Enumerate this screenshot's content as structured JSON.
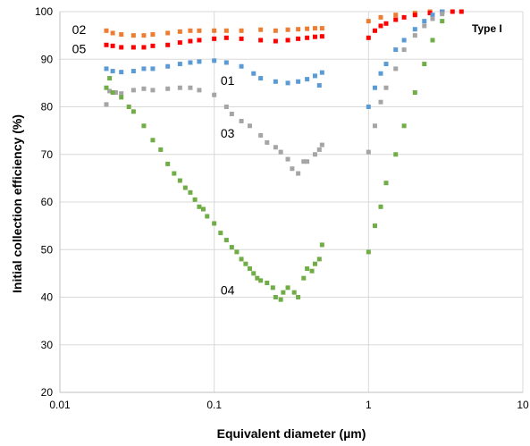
{
  "chart_data": {
    "type": "scatter",
    "title": "",
    "annotation": "Type I",
    "xlabel": "Equivalent diameter (µm)",
    "ylabel": "Initial collection efficiency (%)",
    "xscale": "log",
    "xlim": [
      0.01,
      10
    ],
    "ylim": [
      20,
      100
    ],
    "grid": true,
    "legend": "none",
    "x_ticks": [
      0.01,
      0.1,
      1,
      10
    ],
    "x_tick_labels": [
      "0.01",
      "0.1",
      "1",
      "10"
    ],
    "y_ticks": [
      20,
      30,
      40,
      50,
      60,
      70,
      80,
      90,
      100
    ],
    "y_tick_labels": [
      "20",
      "30",
      "40",
      "50",
      "60",
      "70",
      "80",
      "90",
      "100"
    ],
    "series": [
      {
        "name": "02",
        "color": "#ED7D31",
        "points": [
          [
            0.02,
            96
          ],
          [
            0.022,
            95.5
          ],
          [
            0.025,
            95.2
          ],
          [
            0.03,
            95
          ],
          [
            0.035,
            95
          ],
          [
            0.04,
            95.2
          ],
          [
            0.05,
            95.5
          ],
          [
            0.06,
            95.8
          ],
          [
            0.07,
            96
          ],
          [
            0.08,
            96
          ],
          [
            0.1,
            96
          ],
          [
            0.12,
            96
          ],
          [
            0.15,
            96
          ],
          [
            0.2,
            96.2
          ],
          [
            0.25,
            96
          ],
          [
            0.3,
            96.2
          ],
          [
            0.35,
            96.3
          ],
          [
            0.4,
            96.4
          ],
          [
            0.45,
            96.5
          ],
          [
            0.5,
            96.5
          ],
          [
            1.0,
            98
          ],
          [
            1.2,
            98.8
          ],
          [
            1.5,
            99.3
          ],
          [
            2.0,
            99.7
          ],
          [
            2.5,
            100
          ],
          [
            3.0,
            100
          ]
        ]
      },
      {
        "name": "05",
        "color": "#FF0000",
        "points": [
          [
            0.02,
            93
          ],
          [
            0.022,
            92.8
          ],
          [
            0.025,
            92.5
          ],
          [
            0.03,
            92.5
          ],
          [
            0.035,
            92.5
          ],
          [
            0.04,
            92.8
          ],
          [
            0.05,
            93
          ],
          [
            0.06,
            93.5
          ],
          [
            0.07,
            93.8
          ],
          [
            0.08,
            94
          ],
          [
            0.1,
            94.3
          ],
          [
            0.12,
            94.5
          ],
          [
            0.15,
            94.3
          ],
          [
            0.2,
            94
          ],
          [
            0.25,
            93.8
          ],
          [
            0.3,
            94
          ],
          [
            0.35,
            94.3
          ],
          [
            0.4,
            94.5
          ],
          [
            0.45,
            94.7
          ],
          [
            0.5,
            94.8
          ],
          [
            1.0,
            94.5
          ],
          [
            1.1,
            96
          ],
          [
            1.2,
            97
          ],
          [
            1.3,
            97.5
          ],
          [
            1.5,
            98.3
          ],
          [
            1.7,
            98.8
          ],
          [
            2.0,
            99.3
          ],
          [
            2.5,
            99.7
          ],
          [
            3.0,
            100
          ],
          [
            3.5,
            100
          ],
          [
            4.0,
            100
          ]
        ]
      },
      {
        "name": "01",
        "color": "#5B9BD5",
        "points": [
          [
            0.02,
            88
          ],
          [
            0.022,
            87.5
          ],
          [
            0.025,
            87.3
          ],
          [
            0.03,
            87.5
          ],
          [
            0.035,
            88
          ],
          [
            0.04,
            88
          ],
          [
            0.05,
            88.5
          ],
          [
            0.06,
            89
          ],
          [
            0.07,
            89.3
          ],
          [
            0.08,
            89.5
          ],
          [
            0.1,
            89.7
          ],
          [
            0.12,
            89.3
          ],
          [
            0.15,
            88.5
          ],
          [
            0.18,
            87
          ],
          [
            0.2,
            86
          ],
          [
            0.25,
            85.3
          ],
          [
            0.3,
            85
          ],
          [
            0.35,
            85.3
          ],
          [
            0.4,
            85.8
          ],
          [
            0.45,
            86.5
          ],
          [
            0.48,
            84.5
          ],
          [
            0.5,
            87.2
          ],
          [
            1.0,
            80
          ],
          [
            1.1,
            84
          ],
          [
            1.2,
            87
          ],
          [
            1.3,
            89
          ],
          [
            1.5,
            92
          ],
          [
            1.7,
            94
          ],
          [
            2.0,
            96.3
          ],
          [
            2.3,
            98
          ],
          [
            2.6,
            99.3
          ],
          [
            3.0,
            100
          ]
        ]
      },
      {
        "name": "03",
        "color": "#A5A5A5",
        "points": [
          [
            0.02,
            80.5
          ],
          [
            0.021,
            83.3
          ],
          [
            0.023,
            83
          ],
          [
            0.025,
            82.8
          ],
          [
            0.03,
            83.5
          ],
          [
            0.035,
            83.8
          ],
          [
            0.04,
            83.5
          ],
          [
            0.05,
            83.8
          ],
          [
            0.06,
            84
          ],
          [
            0.07,
            84
          ],
          [
            0.08,
            83.5
          ],
          [
            0.1,
            82.5
          ],
          [
            0.12,
            80
          ],
          [
            0.13,
            78.5
          ],
          [
            0.15,
            77
          ],
          [
            0.17,
            76
          ],
          [
            0.2,
            74
          ],
          [
            0.22,
            72.5
          ],
          [
            0.25,
            71.5
          ],
          [
            0.27,
            70.5
          ],
          [
            0.3,
            69
          ],
          [
            0.32,
            67
          ],
          [
            0.35,
            66
          ],
          [
            0.38,
            68.5
          ],
          [
            0.4,
            68.5
          ],
          [
            0.45,
            70
          ],
          [
            0.48,
            71
          ],
          [
            0.5,
            72
          ],
          [
            1.0,
            70.5
          ],
          [
            1.1,
            76
          ],
          [
            1.2,
            81
          ],
          [
            1.3,
            84
          ],
          [
            1.5,
            88
          ],
          [
            1.7,
            92
          ],
          [
            2.0,
            95
          ],
          [
            2.3,
            97
          ],
          [
            2.6,
            98.5
          ],
          [
            3.0,
            99.5
          ]
        ]
      },
      {
        "name": "04",
        "color": "#70AD47",
        "points": [
          [
            0.02,
            84
          ],
          [
            0.021,
            86
          ],
          [
            0.022,
            83
          ],
          [
            0.025,
            82
          ],
          [
            0.028,
            80
          ],
          [
            0.03,
            79
          ],
          [
            0.035,
            76
          ],
          [
            0.04,
            73
          ],
          [
            0.045,
            71
          ],
          [
            0.05,
            68
          ],
          [
            0.055,
            66
          ],
          [
            0.06,
            64.5
          ],
          [
            0.065,
            63
          ],
          [
            0.07,
            62
          ],
          [
            0.075,
            60.5
          ],
          [
            0.08,
            59
          ],
          [
            0.085,
            58.5
          ],
          [
            0.09,
            57
          ],
          [
            0.1,
            55.5
          ],
          [
            0.11,
            53.5
          ],
          [
            0.12,
            52
          ],
          [
            0.13,
            50.5
          ],
          [
            0.14,
            49.5
          ],
          [
            0.15,
            48
          ],
          [
            0.16,
            47
          ],
          [
            0.17,
            46
          ],
          [
            0.18,
            45
          ],
          [
            0.19,
            44
          ],
          [
            0.2,
            43.5
          ],
          [
            0.22,
            43
          ],
          [
            0.24,
            42
          ],
          [
            0.25,
            40
          ],
          [
            0.27,
            39.5
          ],
          [
            0.28,
            41
          ],
          [
            0.3,
            42
          ],
          [
            0.33,
            41
          ],
          [
            0.35,
            40
          ],
          [
            0.38,
            44
          ],
          [
            0.4,
            46
          ],
          [
            0.43,
            45.5
          ],
          [
            0.45,
            47
          ],
          [
            0.48,
            48
          ],
          [
            0.5,
            51
          ],
          [
            1.0,
            49.5
          ],
          [
            1.1,
            55
          ],
          [
            1.2,
            59
          ],
          [
            1.3,
            64
          ],
          [
            1.5,
            70
          ],
          [
            1.7,
            76
          ],
          [
            2.0,
            83
          ],
          [
            2.3,
            89
          ],
          [
            2.6,
            94
          ],
          [
            3.0,
            98
          ]
        ]
      }
    ],
    "labels": [
      {
        "text": "02",
        "x": 0.012,
        "y": 96.2
      },
      {
        "text": "05",
        "x": 0.012,
        "y": 92.2
      },
      {
        "text": "01",
        "x": 0.11,
        "y": 85.5
      },
      {
        "text": "03",
        "x": 0.11,
        "y": 74.5
      },
      {
        "text": "04",
        "x": 0.11,
        "y": 41.5
      }
    ]
  }
}
